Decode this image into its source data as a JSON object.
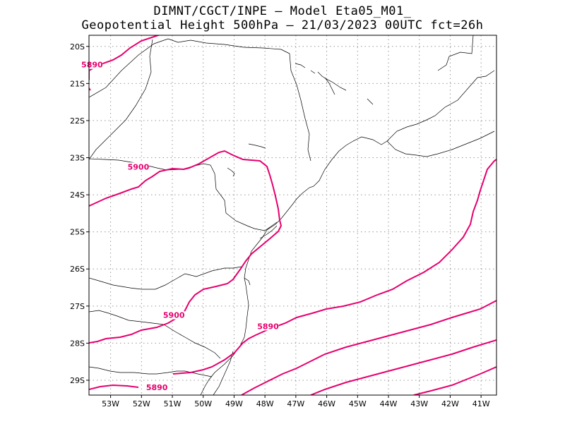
{
  "title": {
    "line1": "DIMNT/CGCT/INPE –  Model Eta05_M01_",
    "line2": "Geopotential Height 500hPa –  21/03/2023 00UTC fct=26h"
  },
  "map": {
    "lon_range": [
      -53.7,
      -40.5
    ],
    "lat_range": [
      -29.4,
      -19.7
    ],
    "grid": "dotted",
    "contour_color": "#e6006e",
    "coast_color": "#000000",
    "y_ticks": [
      {
        "lat": -20,
        "label": "20S"
      },
      {
        "lat": -21,
        "label": "21S"
      },
      {
        "lat": -22,
        "label": "22S"
      },
      {
        "lat": -23,
        "label": "23S"
      },
      {
        "lat": -24,
        "label": "24S"
      },
      {
        "lat": -25,
        "label": "25S"
      },
      {
        "lat": -26,
        "label": "26S"
      },
      {
        "lat": -27,
        "label": "27S"
      },
      {
        "lat": -28,
        "label": "28S"
      },
      {
        "lat": -29,
        "label": "29S"
      }
    ],
    "x_ticks": [
      {
        "lon": -53,
        "label": "53W"
      },
      {
        "lon": -52,
        "label": "52W"
      },
      {
        "lon": -51,
        "label": "51W"
      },
      {
        "lon": -50,
        "label": "50W"
      },
      {
        "lon": -49,
        "label": "49W"
      },
      {
        "lon": -48,
        "label": "48W"
      },
      {
        "lon": -47,
        "label": "47W"
      },
      {
        "lon": -46,
        "label": "46W"
      },
      {
        "lon": -45,
        "label": "45W"
      },
      {
        "lon": -44,
        "label": "44W"
      },
      {
        "lon": -43,
        "label": "43W"
      },
      {
        "lon": -42,
        "label": "42W"
      },
      {
        "lon": -41,
        "label": "41W"
      }
    ],
    "contour_labels": [
      {
        "text": "5890",
        "lon": -53.6,
        "lat": -20.55
      },
      {
        "text": "5900",
        "lon": -52.1,
        "lat": -23.3
      },
      {
        "text": "5900",
        "lon": -50.95,
        "lat": -27.3
      },
      {
        "text": "5890",
        "lon": -47.9,
        "lat": -27.6
      },
      {
        "text": "5890",
        "lon": -51.5,
        "lat": -29.25
      }
    ]
  }
}
